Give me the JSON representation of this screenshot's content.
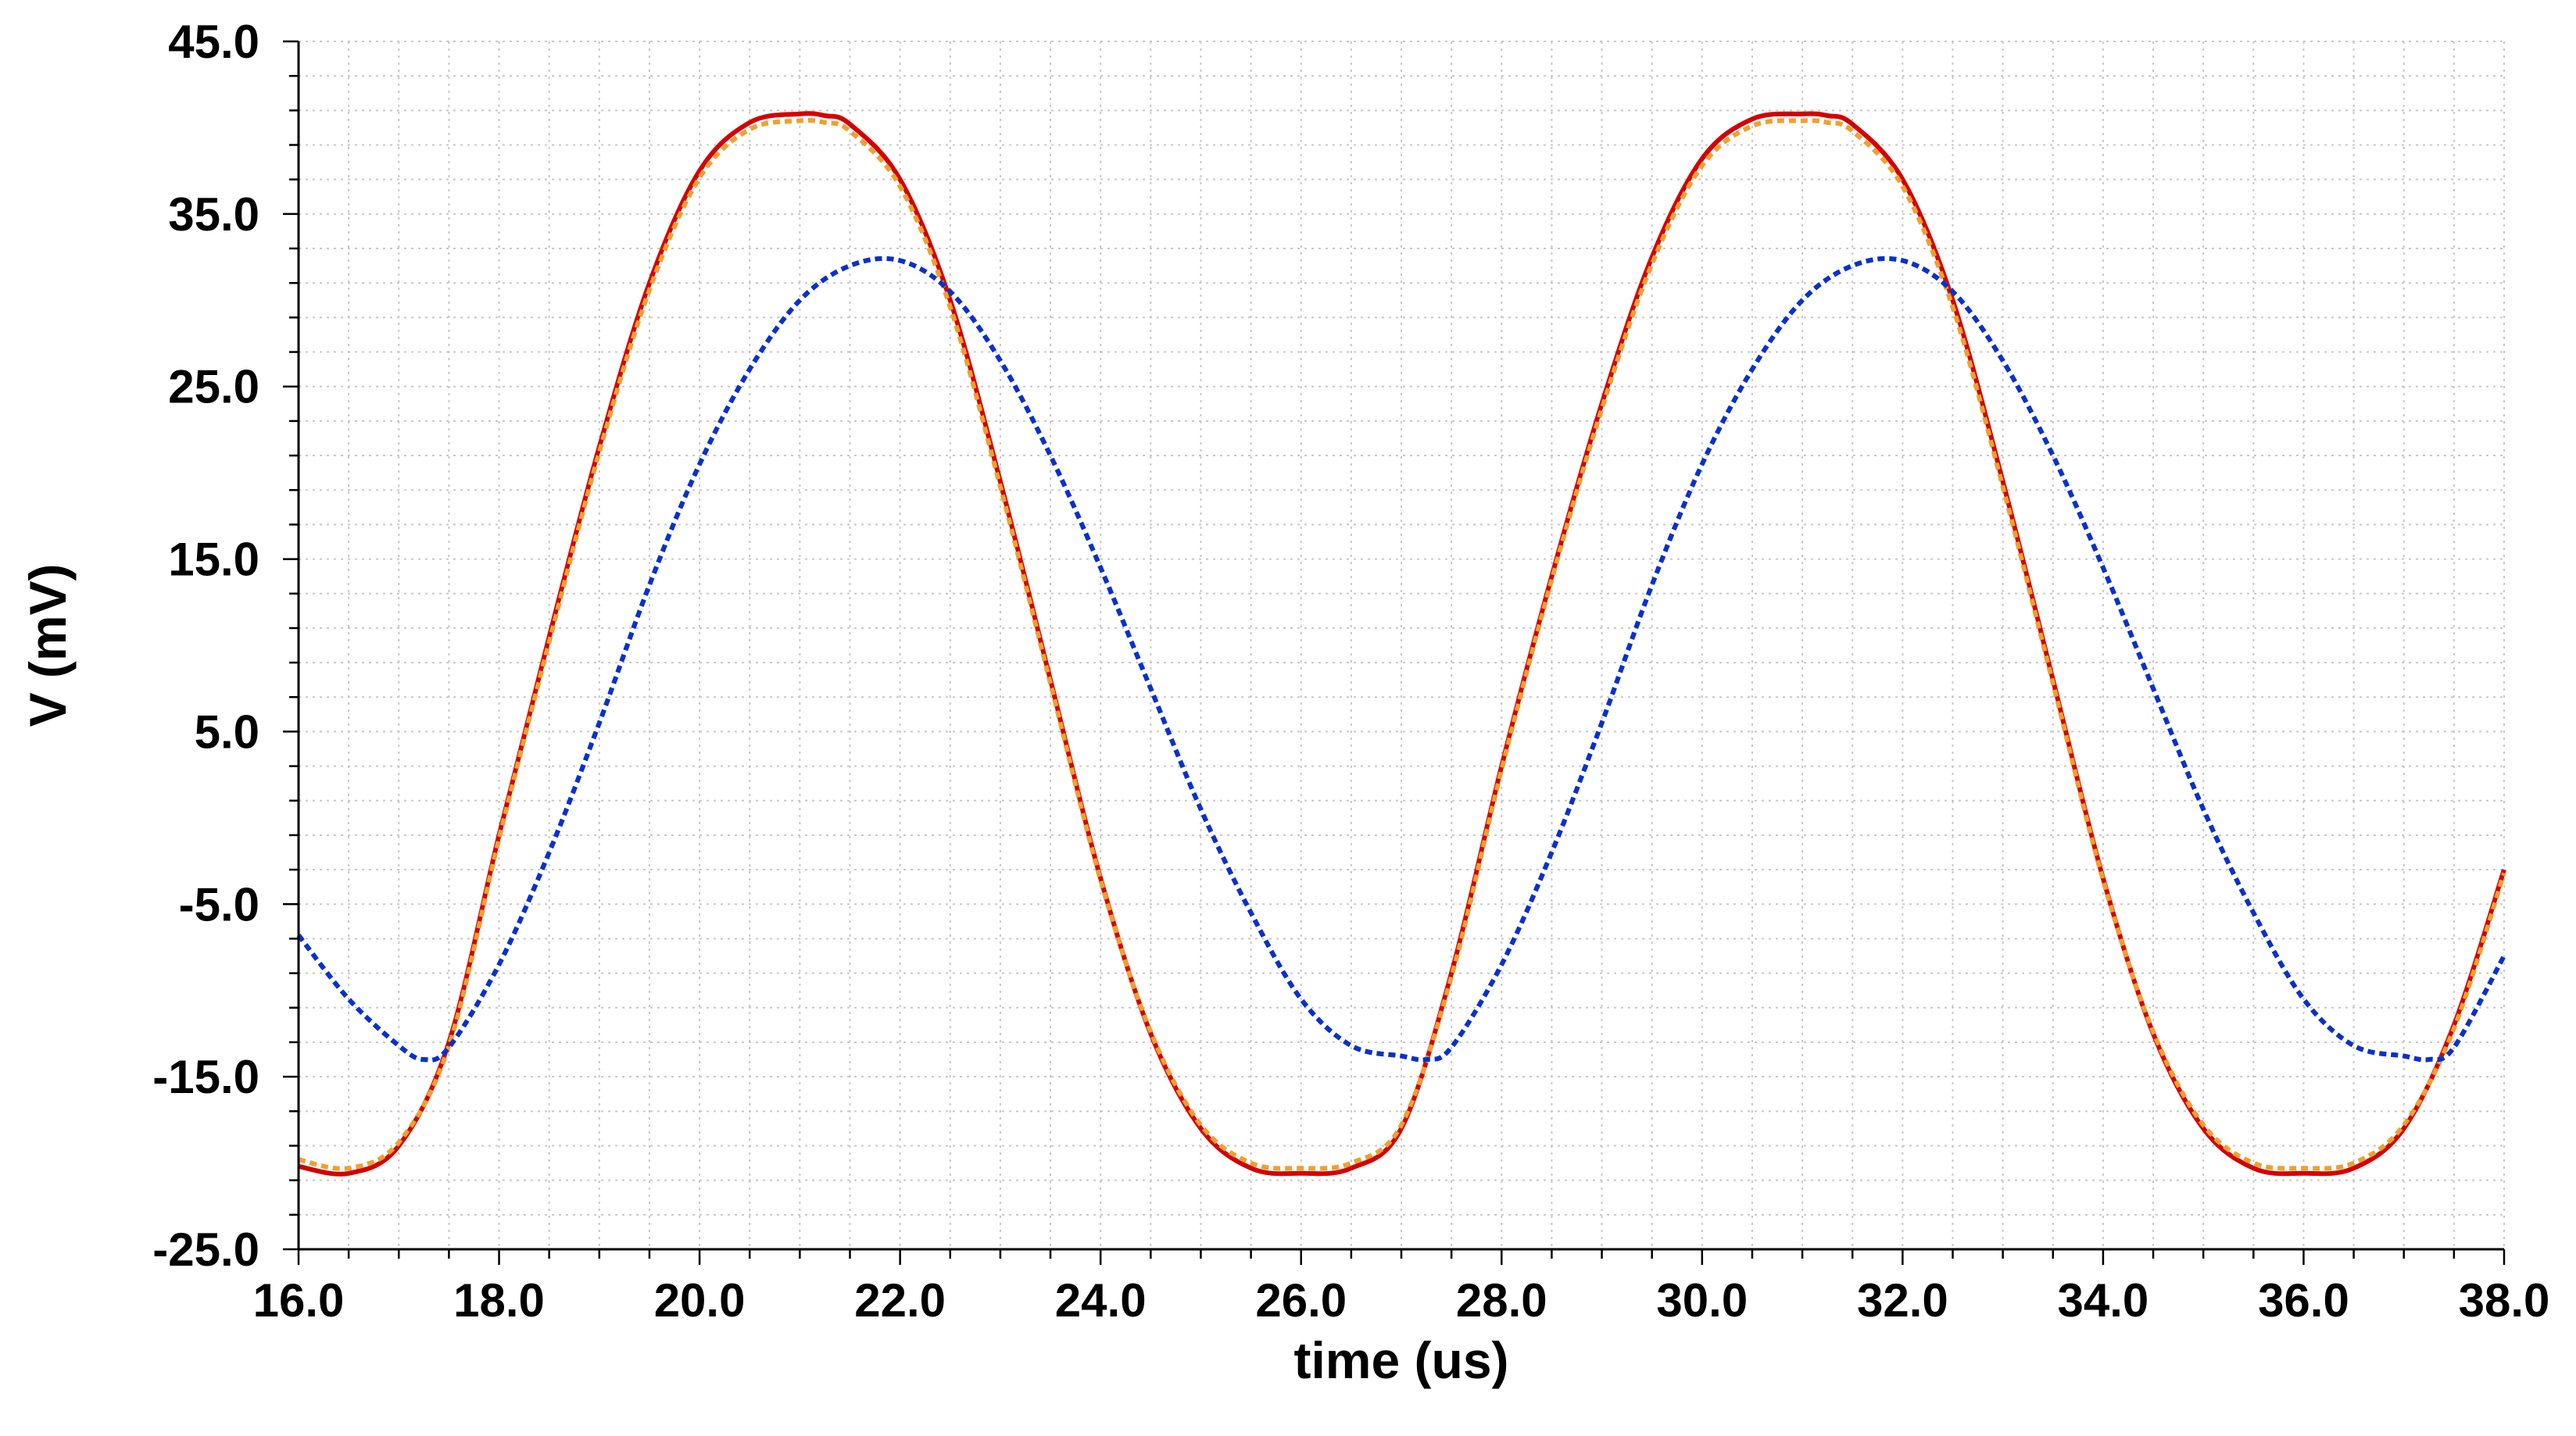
{
  "chart_data": {
    "type": "line",
    "xlabel": "time (us)",
    "ylabel": "V (mV)",
    "xlim": [
      16.0,
      38.0
    ],
    "ylim": [
      -25.0,
      45.0
    ],
    "x_ticks": [
      "16.0",
      "18.0",
      "20.0",
      "22.0",
      "24.0",
      "26.0",
      "28.0",
      "30.0",
      "32.0",
      "34.0",
      "36.0",
      "38.0"
    ],
    "y_ticks": [
      "-25.0",
      "-15.0",
      "-5.0",
      "5.0",
      "15.0",
      "25.0",
      "35.0",
      "45.0"
    ],
    "grid": true,
    "series": [
      {
        "color": "#d40000",
        "dash": "solid",
        "x": [
          16.0,
          16.5,
          17.0,
          17.5,
          18.0,
          18.5,
          19.0,
          19.5,
          20.0,
          20.5,
          21.0,
          21.25,
          21.5,
          22.0,
          22.5,
          23.0,
          23.5,
          24.0,
          24.5,
          25.0,
          25.5,
          26.0,
          26.5,
          27.0,
          27.5,
          28.0,
          28.5,
          29.0,
          29.5,
          30.0,
          30.5,
          31.0,
          31.25,
          31.5,
          32.0,
          32.5,
          33.0,
          33.5,
          34.0,
          34.5,
          35.0,
          35.5,
          36.0,
          36.5,
          37.0,
          37.5,
          38.0
        ],
        "y": [
          -20.2,
          -20.6,
          -19.0,
          -13.0,
          -1.0,
          10.5,
          21.5,
          31.0,
          37.5,
          40.3,
          40.8,
          40.7,
          40.2,
          37.0,
          30.0,
          19.5,
          8.0,
          -3.5,
          -12.5,
          -18.0,
          -20.3,
          -20.6,
          -20.3,
          -18.0,
          -9.0,
          3.0,
          14.0,
          24.0,
          32.5,
          38.2,
          40.5,
          40.8,
          40.7,
          40.2,
          37.0,
          30.0,
          19.5,
          8.0,
          -3.5,
          -12.5,
          -18.0,
          -20.3,
          -20.6,
          -20.3,
          -18.0,
          -12.0,
          -3.0
        ]
      },
      {
        "color": "#f0a030",
        "dash": "dashed",
        "x": [
          16.0,
          16.5,
          17.0,
          17.5,
          18.0,
          18.5,
          19.0,
          19.5,
          20.0,
          20.5,
          21.0,
          21.25,
          21.5,
          22.0,
          22.5,
          23.0,
          23.5,
          24.0,
          24.5,
          25.0,
          25.5,
          26.0,
          26.5,
          27.0,
          27.5,
          28.0,
          28.5,
          29.0,
          29.5,
          30.0,
          30.5,
          31.0,
          31.25,
          31.5,
          32.0,
          32.5,
          33.0,
          33.5,
          34.0,
          34.5,
          35.0,
          35.5,
          36.0,
          36.5,
          37.0,
          37.5,
          38.0
        ],
        "y": [
          -19.8,
          -20.3,
          -18.8,
          -13.2,
          -1.2,
          10.2,
          21.2,
          30.6,
          37.1,
          39.9,
          40.4,
          40.3,
          39.8,
          36.6,
          29.6,
          19.2,
          7.8,
          -3.6,
          -12.4,
          -17.8,
          -20.0,
          -20.3,
          -20.0,
          -17.8,
          -9.2,
          2.8,
          13.8,
          23.7,
          32.1,
          37.8,
          40.1,
          40.4,
          40.3,
          39.8,
          36.6,
          29.6,
          19.2,
          7.8,
          -3.6,
          -12.4,
          -17.8,
          -20.0,
          -20.3,
          -20.0,
          -17.8,
          -12.2,
          -3.2
        ]
      },
      {
        "color": "#2a9d2a",
        "dash": "dashed",
        "x": [
          16.0,
          16.5,
          17.0,
          17.25,
          17.5,
          18.0,
          18.5,
          19.0,
          19.5,
          20.0,
          20.5,
          21.0,
          21.5,
          22.0,
          22.5,
          23.0,
          23.5,
          24.0,
          24.5,
          25.0,
          25.5,
          26.0,
          26.5,
          27.0,
          27.25,
          27.5,
          28.0,
          28.5,
          29.0,
          29.5,
          30.0,
          30.5,
          31.0,
          31.5,
          32.0,
          32.5,
          33.0,
          33.5,
          34.0,
          34.5,
          35.0,
          35.5,
          36.0,
          36.5,
          37.0,
          37.25,
          37.5,
          38.0
        ],
        "y": [
          -6.8,
          -10.5,
          -13.2,
          -14.0,
          -13.3,
          -8.5,
          -2.0,
          5.5,
          13.5,
          20.5,
          26.0,
          30.0,
          32.0,
          32.3,
          30.5,
          26.5,
          21.0,
          14.5,
          7.5,
          0.5,
          -5.5,
          -10.5,
          -13.2,
          -13.8,
          -14.0,
          -13.3,
          -8.5,
          -2.0,
          5.5,
          13.5,
          20.5,
          26.0,
          30.0,
          32.0,
          32.3,
          30.5,
          26.5,
          21.0,
          14.5,
          7.5,
          0.5,
          -5.5,
          -10.5,
          -13.2,
          -13.8,
          -14.0,
          -13.3,
          -8.0
        ]
      },
      {
        "color": "#0a2fd0",
        "dash": "dashed",
        "x": [
          16.0,
          16.5,
          17.0,
          17.25,
          17.5,
          18.0,
          18.5,
          19.0,
          19.5,
          20.0,
          20.5,
          21.0,
          21.5,
          22.0,
          22.5,
          23.0,
          23.5,
          24.0,
          24.5,
          25.0,
          25.5,
          26.0,
          26.5,
          27.0,
          27.25,
          27.5,
          28.0,
          28.5,
          29.0,
          29.5,
          30.0,
          30.5,
          31.0,
          31.5,
          32.0,
          32.5,
          33.0,
          33.5,
          34.0,
          34.5,
          35.0,
          35.5,
          36.0,
          36.5,
          37.0,
          37.25,
          37.5,
          38.0
        ],
        "y": [
          -6.8,
          -10.5,
          -13.2,
          -14.0,
          -13.3,
          -8.5,
          -2.0,
          5.5,
          13.5,
          20.5,
          26.0,
          30.0,
          32.0,
          32.3,
          30.5,
          26.5,
          21.0,
          14.5,
          7.5,
          0.5,
          -5.5,
          -10.5,
          -13.2,
          -13.8,
          -14.0,
          -13.3,
          -8.5,
          -2.0,
          5.5,
          13.5,
          20.5,
          26.0,
          30.0,
          32.0,
          32.3,
          30.5,
          26.5,
          21.0,
          14.5,
          7.5,
          0.5,
          -5.5,
          -10.5,
          -13.2,
          -13.8,
          -14.0,
          -13.3,
          -8.0
        ]
      }
    ]
  }
}
